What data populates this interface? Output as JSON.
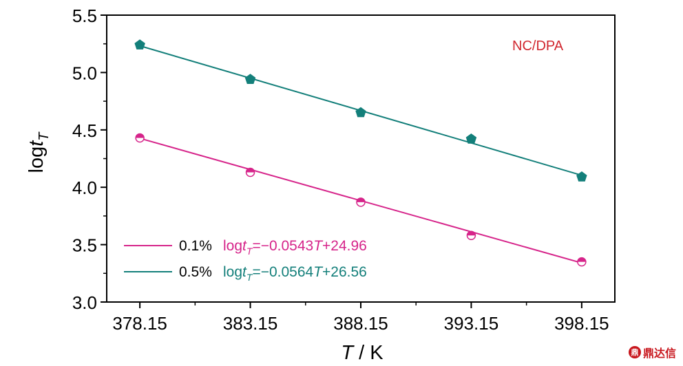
{
  "chart_data": {
    "type": "scatter",
    "x_tick_labels": [
      "378.15",
      "383.15",
      "388.15",
      "393.15",
      "398.15"
    ],
    "y_tick_labels": [
      "3.0",
      "3.5",
      "4.0",
      "4.5",
      "5.0",
      "5.5"
    ],
    "xlim": [
      376.65,
      399.65
    ],
    "ylim": [
      3.0,
      5.5
    ],
    "xlabel_italic": "T",
    "xlabel_rest": " / K",
    "ylabel_main": "log",
    "ylabel_italic": "t",
    "ylabel_sub": "T",
    "annotation": "NC/DPA",
    "grid": false,
    "legend_position": "bottom-left",
    "series": [
      {
        "name": "0.1%",
        "color": "#d6248a",
        "marker": "half-filled-circle",
        "x": [
          378.15,
          383.15,
          388.15,
          393.15,
          398.15
        ],
        "y": [
          4.43,
          4.13,
          3.87,
          3.58,
          3.35
        ],
        "fit_slope": -0.0543,
        "fit_intercept": 24.96,
        "equation": {
          "pre": "log",
          "t": "t",
          "sub": "T",
          "mid": "=−0.0543",
          "T": "T",
          "post": "+24.96"
        }
      },
      {
        "name": "0.5%",
        "color": "#137f7a",
        "marker": "pentagon",
        "x": [
          378.15,
          383.15,
          388.15,
          393.15,
          398.15
        ],
        "y": [
          5.24,
          4.94,
          4.65,
          4.42,
          4.09
        ],
        "fit_slope": -0.0564,
        "fit_intercept": 26.56,
        "equation": {
          "pre": "log",
          "t": "t",
          "sub": "T",
          "mid": "=−0.0564",
          "T": "T",
          "post": "+26.56"
        }
      }
    ]
  },
  "watermark": {
    "icon": "鼎",
    "text": "鼎达信"
  }
}
